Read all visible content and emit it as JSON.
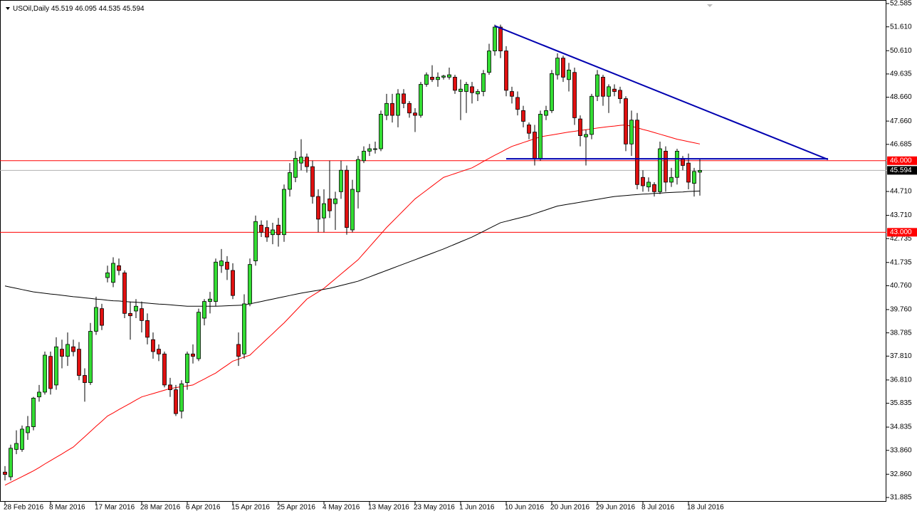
{
  "chart_data": {
    "type": "candlestick",
    "title": "USOil,Daily",
    "categories": [
      "28 Feb 2016",
      null,
      null,
      null,
      null,
      null,
      null,
      null,
      "8 Mar 2016",
      null,
      null,
      null,
      null,
      null,
      null,
      null,
      "17 Mar 2016",
      null,
      null,
      null,
      null,
      null,
      null,
      null,
      "28 Mar 2016",
      null,
      null,
      null,
      null,
      null,
      null,
      null,
      "6 Apr 2016",
      null,
      null,
      null,
      null,
      null,
      null,
      null,
      "15 Apr 2016",
      null,
      null,
      null,
      null,
      null,
      null,
      null,
      "25 Apr 2016",
      null,
      null,
      null,
      null,
      null,
      null,
      null,
      "4 May 2016",
      null,
      null,
      null,
      null,
      null,
      null,
      null,
      "13 May 2016",
      null,
      null,
      null,
      null,
      null,
      null,
      null,
      "23 May 2016",
      null,
      null,
      null,
      null,
      null,
      null,
      null,
      "1 Jun 2016",
      null,
      null,
      null,
      null,
      null,
      null,
      null,
      "10 Jun 2016",
      null,
      null,
      null,
      null,
      null,
      null,
      null,
      "20 Jun 2016",
      null,
      null,
      null,
      null,
      null,
      null,
      null,
      "29 Jun 2016",
      null,
      null,
      null,
      null,
      null,
      null,
      null,
      "8 Jul 2016",
      null,
      null,
      null,
      null,
      null,
      null,
      null,
      "18 Jul 2016",
      null,
      null
    ],
    "open": [
      32.95,
      32.75,
      33.9,
      33.9,
      34.6,
      34.85,
      36.1,
      36.3,
      37.8,
      36.6,
      38.1,
      37.8,
      38.2,
      38.1,
      37.0,
      36.7,
      38.85,
      39.8,
      41.1,
      40.9,
      41.6,
      41.3,
      39.6,
      39.7,
      39.8,
      39.3,
      38.5,
      38.1,
      37.9,
      36.6,
      36.4,
      35.5,
      36.7,
      37.9,
      37.7,
      39.4,
      40.1,
      40.1,
      41.6,
      41.75,
      41.4,
      38.3,
      37.9,
      40.0,
      41.8,
      43.3,
      43.2,
      42.9,
      43.3,
      42.9,
      44.8,
      45.3,
      45.9,
      46.15,
      45.75,
      44.5,
      43.6,
      44.4,
      44.2,
      44.7,
      45.6,
      43.1,
      44.7,
      46.0,
      46.4,
      46.5,
      46.5,
      47.9,
      48.4,
      47.9,
      48.8,
      48.4,
      48.0,
      47.9,
      49.2,
      49.5,
      49.4,
      49.5,
      49.5,
      49.5,
      48.9,
      48.9,
      49.1,
      48.8,
      48.9,
      49.7,
      50.6,
      51.6,
      50.6,
      48.9,
      48.65,
      48.1,
      47.5,
      47.2,
      46.1,
      47.9,
      48.1,
      49.6,
      50.3,
      49.4,
      49.7,
      47.75,
      47.0,
      47.1,
      48.7,
      49.5,
      48.7,
      49.0,
      48.95,
      48.6,
      46.7,
      47.7,
      45.3,
      44.9,
      45.0,
      44.7,
      46.4,
      45.1,
      45.3,
      46.1,
      45.9,
      45.05,
      45.519
    ],
    "high": [
      33.2,
      34.1,
      34.7,
      34.9,
      35.3,
      36.1,
      36.6,
      38.0,
      38.0,
      38.6,
      38.5,
      38.8,
      38.5,
      38.4,
      37.3,
      39.2,
      40.3,
      40.0,
      41.6,
      41.95,
      41.9,
      41.4,
      40.1,
      40.2,
      40.1,
      39.6,
      38.8,
      38.3,
      38.0,
      36.9,
      36.6,
      36.8,
      38.0,
      38.3,
      39.8,
      40.2,
      40.5,
      41.9,
      42.3,
      42.0,
      41.7,
      38.8,
      40.4,
      41.9,
      43.7,
      43.5,
      43.5,
      43.4,
      43.6,
      45.0,
      45.9,
      46.4,
      46.9,
      46.3,
      46.0,
      44.8,
      44.8,
      46.0,
      44.7,
      46.0,
      45.8,
      45.2,
      46.2,
      46.6,
      46.7,
      46.8,
      48.1,
      48.8,
      48.8,
      49.0,
      49.0,
      48.5,
      48.2,
      49.3,
      49.7,
      50.0,
      49.7,
      49.6,
      49.9,
      49.6,
      49.4,
      49.3,
      49.3,
      49.0,
      49.8,
      50.9,
      51.7,
      51.7,
      50.8,
      49.1,
      48.9,
      48.3,
      47.6,
      47.5,
      48.1,
      48.3,
      49.8,
      50.5,
      50.4,
      50.1,
      49.9,
      47.9,
      47.3,
      48.8,
      49.8,
      49.6,
      49.2,
      49.2,
      49.1,
      48.7,
      48.1,
      48.0,
      45.6,
      45.3,
      45.1,
      46.8,
      46.6,
      45.7,
      46.5,
      46.2,
      46.3,
      45.7,
      46.095
    ],
    "low": [
      32.6,
      32.6,
      33.7,
      33.8,
      34.3,
      34.7,
      35.9,
      36.2,
      36.2,
      36.4,
      37.3,
      37.4,
      37.8,
      36.8,
      35.9,
      36.6,
      38.7,
      38.9,
      40.9,
      40.7,
      41.2,
      39.4,
      38.5,
      39.4,
      38.8,
      38.3,
      37.7,
      37.6,
      36.5,
      36.1,
      35.3,
      35.2,
      36.4,
      37.5,
      37.6,
      39.1,
      39.6,
      39.9,
      41.3,
      41.0,
      40.2,
      37.4,
      37.7,
      39.9,
      41.6,
      42.8,
      42.6,
      42.5,
      42.4,
      42.6,
      44.5,
      45.1,
      45.6,
      45.5,
      44.2,
      43.0,
      43.0,
      43.6,
      43.1,
      44.4,
      42.9,
      43.0,
      44.0,
      45.9,
      46.2,
      46.3,
      46.4,
      47.7,
      47.6,
      47.4,
      48.2,
      47.8,
      47.2,
      47.8,
      49.1,
      49.3,
      49.1,
      49.4,
      49.4,
      48.8,
      47.7,
      48.0,
      48.4,
      48.5,
      48.7,
      49.6,
      50.4,
      50.3,
      48.7,
      48.4,
      47.9,
      47.4,
      46.9,
      45.8,
      46.0,
      47.7,
      48.0,
      49.4,
      49.3,
      48.9,
      47.5,
      46.6,
      45.8,
      46.9,
      48.5,
      48.3,
      48.0,
      48.7,
      48.4,
      46.4,
      46.2,
      44.8,
      44.7,
      44.7,
      44.5,
      44.6,
      44.7,
      44.9,
      45.0,
      45.6,
      44.8,
      44.5,
      44.535
    ],
    "close": [
      32.85,
      33.95,
      34.15,
      34.75,
      34.85,
      36.05,
      36.3,
      37.85,
      36.45,
      38.2,
      37.8,
      38.3,
      38.0,
      37.0,
      36.7,
      38.85,
      39.85,
      39.1,
      41.3,
      41.7,
      41.4,
      39.6,
      39.5,
      39.9,
      39.3,
      38.6,
      38.0,
      37.9,
      36.6,
      36.4,
      35.4,
      36.65,
      37.9,
      37.8,
      39.65,
      40.1,
      40.2,
      41.75,
      41.8,
      41.45,
      40.35,
      37.8,
      40.0,
      41.65,
      43.45,
      43.0,
      42.8,
      43.1,
      42.9,
      44.8,
      45.5,
      46.1,
      46.15,
      45.75,
      44.5,
      43.55,
      44.2,
      43.9,
      44.4,
      45.6,
      43.2,
      44.8,
      46.05,
      46.4,
      46.5,
      46.5,
      47.95,
      48.4,
      47.9,
      48.8,
      48.4,
      48.0,
      47.9,
      49.2,
      49.6,
      49.4,
      49.5,
      49.55,
      49.6,
      48.95,
      49.0,
      49.2,
      48.85,
      48.9,
      49.65,
      50.6,
      51.6,
      50.6,
      48.95,
      48.7,
      48.15,
      47.65,
      47.15,
      46.1,
      47.95,
      48.1,
      49.65,
      50.3,
      49.5,
      49.8,
      47.8,
      47.05,
      47.1,
      48.7,
      49.6,
      48.7,
      49.1,
      48.9,
      48.6,
      46.7,
      47.7,
      45.0,
      44.95,
      45.1,
      44.7,
      46.5,
      45.1,
      45.3,
      46.4,
      45.8,
      45.1,
      45.55,
      45.594
    ],
    "up_color": "#33dd33",
    "down_color": "#e01010",
    "lines": [
      {
        "color": "#ff0000",
        "values": [
          32.4,
          32.52,
          32.64,
          32.76,
          32.88,
          33.0,
          33.14,
          33.29,
          33.43,
          33.57,
          33.71,
          33.86,
          34.0,
          34.22,
          34.43,
          34.65,
          34.87,
          35.08,
          35.3,
          35.43,
          35.57,
          35.7,
          35.83,
          35.97,
          36.1,
          36.17,
          36.24,
          36.31,
          36.38,
          36.45,
          36.49,
          36.53,
          36.56,
          36.6,
          36.73,
          36.85,
          36.98,
          37.1,
          37.27,
          37.43,
          37.6,
          37.68,
          37.77,
          37.85,
          38.08,
          38.3,
          38.53,
          38.75,
          38.98,
          39.2,
          39.45,
          39.7,
          39.95,
          40.2,
          40.35,
          40.5,
          40.65,
          40.85,
          41.05,
          41.25,
          41.45,
          41.65,
          41.85,
          42.12,
          42.39,
          42.66,
          42.93,
          43.2,
          43.44,
          43.68,
          43.92,
          44.16,
          44.4,
          44.58,
          44.76,
          44.94,
          45.12,
          45.3,
          45.38,
          45.46,
          45.54,
          45.62,
          45.7,
          45.83,
          45.97,
          46.1,
          46.23,
          46.35,
          46.48,
          46.6,
          46.68,
          46.76,
          46.84,
          46.92,
          47.0,
          47.04,
          47.08,
          47.12,
          47.16,
          47.2,
          47.23,
          47.27,
          47.3,
          47.33,
          47.37,
          47.4,
          47.43,
          47.45,
          47.48,
          47.5,
          47.44,
          47.38,
          47.31,
          47.25,
          47.18,
          47.11,
          47.04,
          46.97,
          46.9,
          46.85,
          46.8,
          46.75,
          46.7
        ]
      },
      {
        "color": "#000000",
        "values": [
          40.75,
          40.7,
          40.65,
          40.6,
          40.55,
          40.5,
          40.47,
          40.44,
          40.41,
          40.39,
          40.36,
          40.33,
          40.3,
          40.28,
          40.25,
          40.23,
          40.2,
          40.18,
          40.15,
          40.13,
          40.12,
          40.1,
          40.08,
          40.07,
          40.05,
          40.03,
          40.01,
          39.99,
          39.98,
          39.96,
          39.94,
          39.92,
          39.9,
          39.9,
          39.9,
          39.9,
          39.9,
          39.9,
          39.91,
          39.92,
          39.93,
          39.94,
          39.95,
          40.0,
          40.05,
          40.1,
          40.15,
          40.2,
          40.25,
          40.3,
          40.35,
          40.4,
          40.45,
          40.49,
          40.53,
          40.57,
          40.61,
          40.65,
          40.71,
          40.77,
          40.83,
          40.89,
          40.95,
          41.04,
          41.13,
          41.22,
          41.31,
          41.4,
          41.49,
          41.58,
          41.67,
          41.76,
          41.85,
          41.94,
          42.03,
          42.12,
          42.21,
          42.3,
          42.4,
          42.5,
          42.6,
          42.7,
          42.8,
          42.92,
          43.04,
          43.16,
          43.28,
          43.4,
          43.46,
          43.52,
          43.58,
          43.64,
          43.7,
          43.78,
          43.86,
          43.94,
          44.02,
          44.1,
          44.14,
          44.18,
          44.22,
          44.26,
          44.3,
          44.34,
          44.38,
          44.42,
          44.46,
          44.5,
          44.52,
          44.54,
          44.56,
          44.58,
          44.6,
          44.61,
          44.63,
          44.64,
          44.66,
          44.67,
          44.68,
          44.69,
          44.71,
          44.72,
          44.73
        ]
      }
    ],
    "trendlines": [
      {
        "color": "#0000b0",
        "points": [
          [
            86,
            51.65
          ],
          [
            144.5,
            46.05
          ]
        ]
      },
      {
        "color": "#0000b0",
        "points": [
          [
            88,
            46.08
          ],
          [
            144.5,
            46.08
          ]
        ]
      }
    ],
    "hlines": [
      {
        "value": 46,
        "label": "46.000",
        "color": "#ff0000"
      },
      {
        "value": 43,
        "label": "43.000",
        "color": "#ff0000"
      }
    ],
    "ylim": [
      31.795,
      52.675
    ],
    "yticks": [
      52.585,
      {
        "value": 51.61,
        "label": "51.610"
      },
      {
        "value": 50.61,
        "label": "50.610"
      },
      49.635,
      {
        "value": 48.66,
        "label": "48.660"
      },
      {
        "value": 47.66,
        "label": "47.660"
      },
      46.685,
      {
        "value": 44.71,
        "label": "44.710"
      },
      {
        "value": 43.71,
        "label": "43.710"
      },
      42.735,
      41.735,
      {
        "value": 40.76,
        "label": "40.760"
      },
      {
        "value": 39.76,
        "label": "39.760"
      },
      38.785,
      {
        "value": 37.81,
        "label": "37.810"
      },
      {
        "value": 36.81,
        "label": "36.810"
      },
      35.835,
      34.835,
      {
        "value": 33.86,
        "label": "33.860"
      },
      {
        "value": 32.86,
        "label": "32.860"
      },
      31.885
    ],
    "grid": false
  }
}
